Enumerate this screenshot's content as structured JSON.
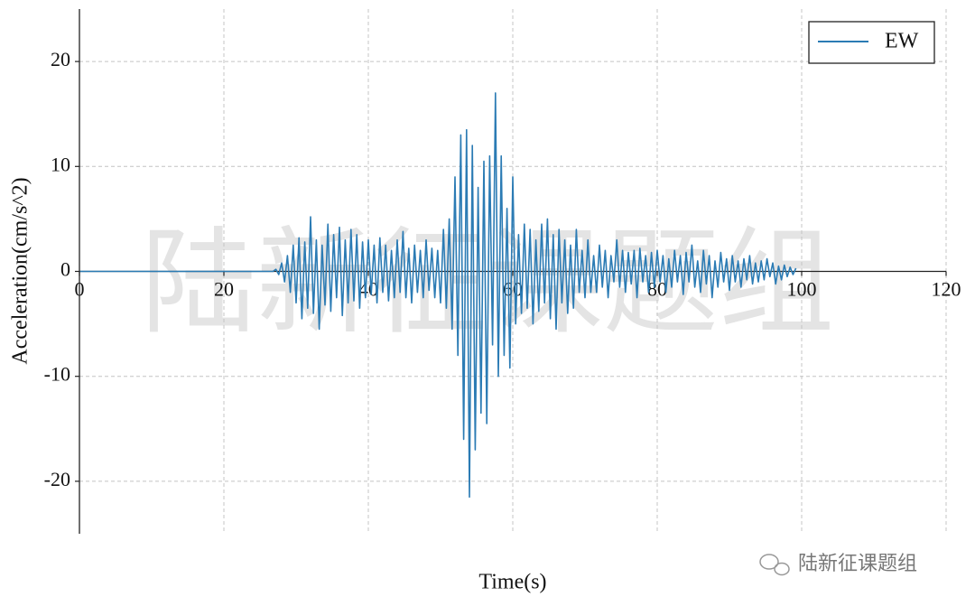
{
  "chart_data": {
    "type": "line",
    "xlabel": "Time(s)",
    "ylabel": "Acceleration(cm/s^2)",
    "xlim": [
      0,
      120
    ],
    "xticks": [
      0,
      20,
      40,
      60,
      80,
      100,
      120
    ],
    "ylim": [
      -25,
      25
    ],
    "yticks": [
      -20,
      -10,
      0,
      10,
      20
    ],
    "grid": true,
    "legend": "upper right",
    "x": [
      0,
      26.8,
      27.2,
      27.6,
      28.0,
      28.4,
      28.8,
      29.2,
      29.6,
      30.0,
      30.4,
      30.8,
      31.2,
      31.6,
      32.0,
      32.4,
      32.8,
      33.2,
      33.6,
      34.0,
      34.4,
      34.8,
      35.2,
      35.6,
      36.0,
      36.4,
      36.8,
      37.2,
      37.6,
      38.0,
      38.4,
      38.8,
      39.2,
      39.6,
      40.0,
      40.4,
      40.8,
      41.2,
      41.6,
      42.0,
      42.4,
      42.8,
      43.2,
      43.6,
      44.0,
      44.4,
      44.8,
      45.2,
      45.6,
      46.0,
      46.4,
      46.8,
      47.2,
      47.6,
      48.0,
      48.4,
      48.8,
      49.2,
      49.6,
      50.0,
      50.4,
      50.8,
      51.2,
      51.6,
      52.0,
      52.4,
      52.8,
      53.2,
      53.6,
      54.0,
      54.4,
      54.8,
      55.2,
      55.6,
      56.0,
      56.4,
      56.8,
      57.2,
      57.6,
      58.0,
      58.4,
      58.8,
      59.2,
      59.6,
      60.0,
      60.4,
      60.8,
      61.2,
      61.6,
      62.0,
      62.4,
      62.8,
      63.2,
      63.6,
      64.0,
      64.4,
      64.8,
      65.2,
      65.6,
      66.0,
      66.4,
      66.8,
      67.2,
      67.6,
      68.0,
      68.4,
      68.8,
      69.2,
      69.6,
      70.0,
      70.4,
      70.8,
      71.2,
      71.6,
      72.0,
      72.4,
      72.8,
      73.2,
      73.6,
      74.0,
      74.4,
      74.8,
      75.2,
      75.6,
      76.0,
      76.4,
      76.8,
      77.2,
      77.6,
      78.0,
      78.4,
      78.8,
      79.2,
      79.6,
      80.0,
      80.4,
      80.8,
      81.2,
      81.6,
      82.0,
      82.4,
      82.8,
      83.2,
      83.6,
      84.0,
      84.4,
      84.8,
      85.2,
      85.6,
      86.0,
      86.4,
      86.8,
      87.2,
      87.6,
      88.0,
      88.4,
      88.8,
      89.2,
      89.6,
      90.0,
      90.4,
      90.8,
      91.2,
      91.6,
      92.0,
      92.4,
      92.8,
      93.2,
      93.6,
      94.0,
      94.4,
      94.8,
      95.2,
      95.6,
      96.0,
      96.4,
      96.8,
      97.2,
      97.6,
      98.0,
      98.4,
      98.8,
      99.2
    ],
    "series": [
      {
        "name": "EW",
        "color": "#2b7bb4",
        "values": [
          0,
          0,
          0.2,
          -0.3,
          0.8,
          -1.0,
          1.5,
          -2.0,
          2.5,
          -3.0,
          3.2,
          -4.5,
          2.8,
          -3.5,
          5.2,
          -4.0,
          3.0,
          -5.5,
          2.5,
          -3.2,
          4.5,
          -3.8,
          3.5,
          -2.5,
          4.2,
          -4.2,
          3.0,
          -3.0,
          4.0,
          -2.8,
          3.5,
          -3.5,
          2.8,
          -2.5,
          3.0,
          -2.2,
          2.5,
          -3.0,
          3.2,
          -2.0,
          2.5,
          -2.8,
          2.0,
          -2.5,
          3.0,
          -2.0,
          3.8,
          -2.5,
          2.2,
          -3.0,
          2.5,
          -2.0,
          2.0,
          -2.5,
          3.0,
          -1.8,
          2.2,
          -2.5,
          2.0,
          -3.0,
          4.0,
          -3.5,
          5.0,
          -5.5,
          9.0,
          -8.0,
          13.0,
          -16.0,
          13.5,
          -21.5,
          12.0,
          -17.0,
          8.0,
          -13.5,
          10.5,
          -14.5,
          11.0,
          -7.0,
          17.0,
          -10.0,
          11.0,
          -8.0,
          6.0,
          -9.2,
          9.0,
          -5.0,
          3.5,
          -4.0,
          4.5,
          -3.5,
          4.0,
          -5.0,
          3.0,
          -3.8,
          4.5,
          -3.0,
          5.0,
          -4.5,
          3.5,
          -5.5,
          4.0,
          -3.0,
          3.0,
          -4.0,
          2.5,
          -3.5,
          4.0,
          -2.0,
          2.0,
          -2.5,
          3.0,
          -2.0,
          1.5,
          -2.0,
          2.5,
          -1.5,
          2.0,
          -2.5,
          1.5,
          -1.0,
          3.0,
          -1.5,
          2.0,
          -2.0,
          1.8,
          -1.2,
          2.0,
          -2.5,
          2.2,
          -1.0,
          1.5,
          -2.0,
          1.8,
          -1.5,
          2.0,
          -1.0,
          1.5,
          -2.0,
          1.2,
          -1.5,
          2.0,
          -1.0,
          1.5,
          -2.2,
          1.8,
          -1.0,
          2.5,
          -1.5,
          1.0,
          -2.0,
          2.0,
          -1.2,
          1.5,
          -2.5,
          1.0,
          -1.5,
          1.8,
          -1.0,
          1.2,
          -1.8,
          1.5,
          -1.0,
          1.0,
          -1.5,
          1.2,
          -0.8,
          1.5,
          -1.2,
          0.8,
          -1.0,
          1.0,
          -0.8,
          1.2,
          -0.5,
          0.8,
          -1.2,
          0.5,
          -0.8,
          0.6,
          -0.5,
          0.4,
          -0.3,
          0.3
        ]
      }
    ]
  },
  "watermark": "陆新征课题组",
  "credit": "陆新征课题组"
}
